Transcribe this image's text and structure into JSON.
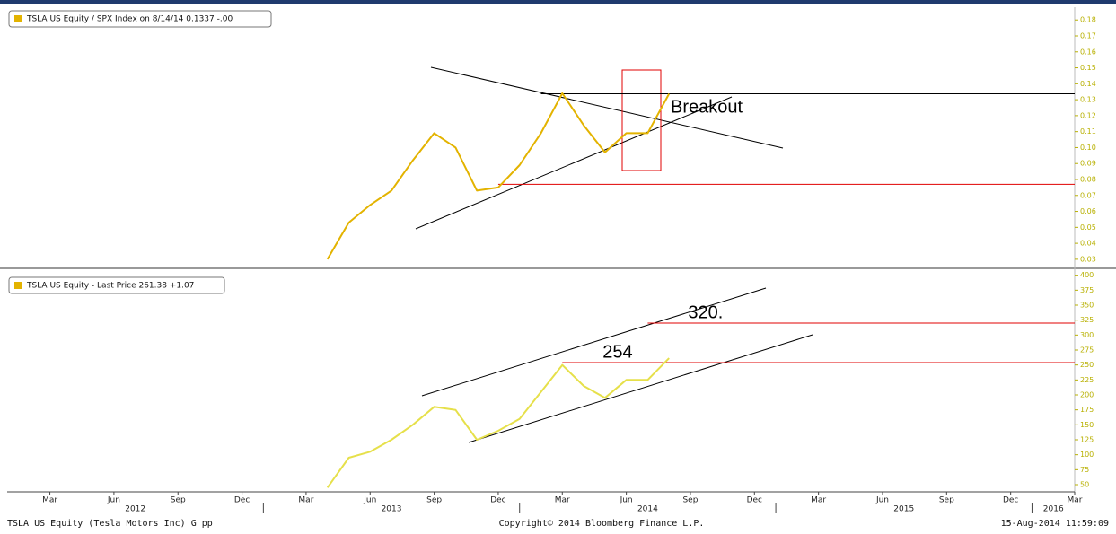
{
  "chart_data": [
    {
      "type": "line",
      "legend": "TSLA US Equity / SPX Index on 8/14/14 0.1337  -.00",
      "x": [
        "2013-04",
        "2013-05",
        "2013-06",
        "2013-07",
        "2013-08",
        "2013-09",
        "2013-10",
        "2013-11",
        "2013-12",
        "2014-01",
        "2014-02",
        "2014-03",
        "2014-04",
        "2014-05",
        "2014-06",
        "2014-07",
        "2014-08"
      ],
      "series": [
        {
          "name": "TSLA US Equity / SPX Index",
          "color": "#e3b300",
          "values": [
            0.03,
            0.053,
            0.064,
            0.073,
            0.092,
            0.109,
            0.1,
            0.073,
            0.075,
            0.089,
            0.109,
            0.134,
            0.114,
            0.097,
            0.109,
            0.109,
            0.1337
          ]
        }
      ],
      "xlim": [
        "2012-01",
        "2016-03"
      ],
      "ylim": [
        0.026,
        0.188
      ],
      "yticks": [
        0.03,
        0.04,
        0.05,
        0.06,
        0.07,
        0.08,
        0.09,
        {
          "value": 0.1,
          "label": "0.10"
        },
        0.11,
        0.12,
        0.13,
        0.14,
        0.15,
        0.16,
        0.17,
        0.18
      ],
      "levels": [
        {
          "value": 0.1337,
          "color": "#000000",
          "start": "2014-02"
        },
        {
          "value": 0.077,
          "color": "#e00000",
          "start": "2013-12"
        }
      ],
      "annotation": "Breakout"
    },
    {
      "type": "line",
      "legend": "TSLA US Equity - Last Price 261.38  +1.07",
      "x": [
        "2013-04",
        "2013-05",
        "2013-06",
        "2013-07",
        "2013-08",
        "2013-09",
        "2013-10",
        "2013-11",
        "2013-12",
        "2014-01",
        "2014-02",
        "2014-03",
        "2014-04",
        "2014-05",
        "2014-06",
        "2014-07",
        "2014-08"
      ],
      "series": [
        {
          "name": "TSLA US Equity - Last Price",
          "color": "#e6e04a",
          "values": [
            45,
            95,
            105,
            125,
            150,
            180,
            175,
            125,
            140,
            160,
            205,
            250,
            215,
            195,
            225,
            225,
            261.38
          ]
        }
      ],
      "xlim": [
        "2012-01",
        "2016-03"
      ],
      "ylim": [
        38,
        410
      ],
      "yticks": [
        50,
        75,
        100,
        125,
        150,
        175,
        200,
        225,
        250,
        275,
        300,
        325,
        350,
        375,
        400
      ],
      "levels": [
        {
          "value": 320,
          "label": "320.",
          "color": "#e00000",
          "start": "2014-07"
        },
        {
          "value": 254,
          "label": "254",
          "color": "#e00000",
          "start": "2014-03"
        }
      ],
      "xticks": [
        {
          "value": "2012-03",
          "label": "Mar"
        },
        {
          "value": "2012-06",
          "label": "Jun"
        },
        {
          "value": "2012-09",
          "label": "Sep"
        },
        {
          "value": "2012-12",
          "label": "Dec"
        },
        {
          "value": "2013-03",
          "label": "Mar"
        },
        {
          "value": "2013-06",
          "label": "Jun"
        },
        {
          "value": "2013-09",
          "label": "Sep"
        },
        {
          "value": "2013-12",
          "label": "Dec"
        },
        {
          "value": "2014-03",
          "label": "Mar"
        },
        {
          "value": "2014-06",
          "label": "Jun"
        },
        {
          "value": "2014-09",
          "label": "Sep"
        },
        {
          "value": "2014-12",
          "label": "Dec"
        },
        {
          "value": "2015-03",
          "label": "Mar"
        },
        {
          "value": "2015-06",
          "label": "Jun"
        },
        {
          "value": "2015-09",
          "label": "Sep"
        },
        {
          "value": "2015-12",
          "label": "Dec"
        },
        {
          "value": "2016-03",
          "label": "Mar"
        }
      ],
      "years": [
        "2012",
        "2013",
        "2014",
        "2015",
        "2016"
      ]
    }
  ],
  "footer": {
    "left": "TSLA US Equity (Tesla Motors Inc) G pp",
    "center": "Copyright© 2014 Bloomberg Finance L.P.",
    "right": "15-Aug-2014 11:59:09"
  }
}
